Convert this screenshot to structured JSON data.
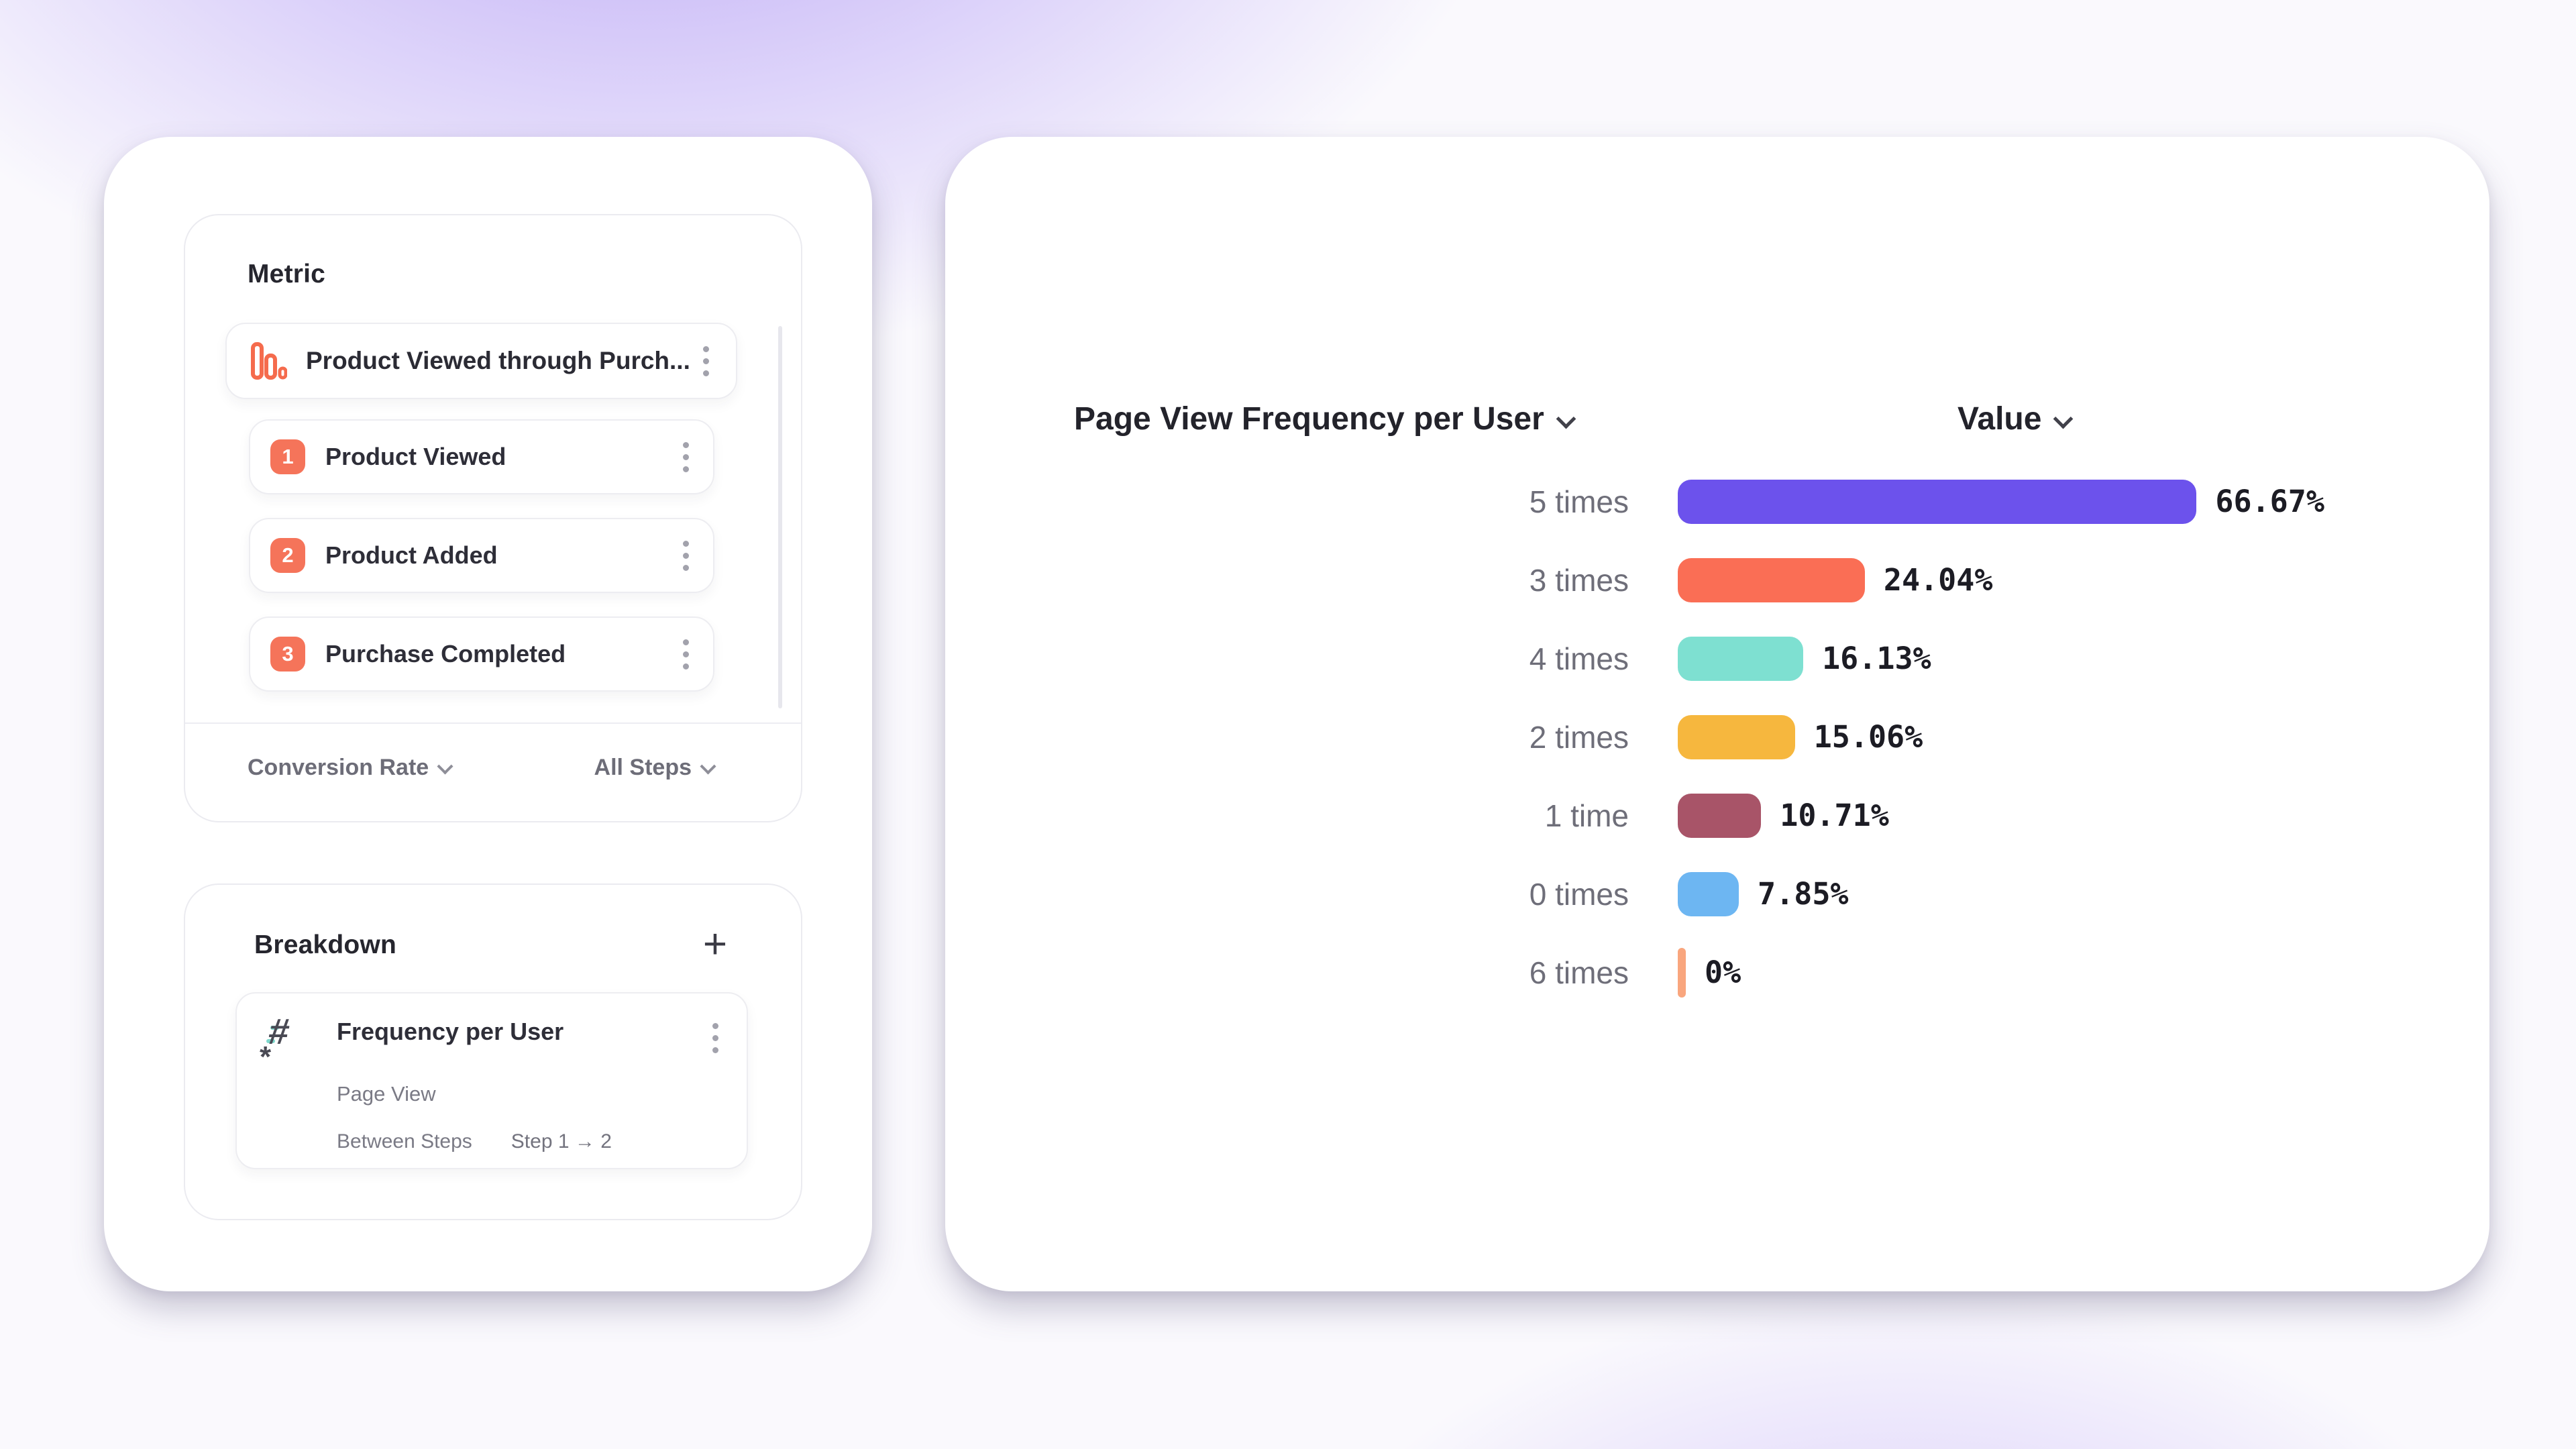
{
  "metric_panel": {
    "title": "Metric",
    "funnel": {
      "label": "Product Viewed through Purch..."
    },
    "steps": [
      {
        "num": "1",
        "label": "Product Viewed"
      },
      {
        "num": "2",
        "label": "Product Added"
      },
      {
        "num": "3",
        "label": "Purchase Completed"
      }
    ],
    "footer": {
      "conversion_dropdown": "Conversion Rate",
      "steps_dropdown": "All Steps"
    }
  },
  "breakdown_panel": {
    "title": "Breakdown",
    "add_label": "+",
    "item": {
      "title": "Frequency per User",
      "subtitle": "Page View",
      "meta_label": "Between Steps",
      "meta_value": "Step 1 → 2"
    }
  },
  "chart_data": {
    "type": "bar",
    "orientation": "horizontal",
    "title": "Page View Frequency per User",
    "value_header": "Value",
    "categories": [
      "5 times",
      "3 times",
      "4 times",
      "2 times",
      "1 time",
      "0 times",
      "6 times"
    ],
    "values": [
      66.67,
      24.04,
      16.13,
      15.06,
      10.71,
      7.85,
      0
    ],
    "value_labels": [
      "66.67%",
      "24.04%",
      "16.13%",
      "15.06%",
      "10.71%",
      "7.85%",
      "0%"
    ],
    "colors": [
      "#6C52EC",
      "#FA6E55",
      "#7EE0D1",
      "#F6B73E",
      "#A85468",
      "#6DB6F2",
      "#F9A67E"
    ],
    "unit": "%",
    "xlim": [
      0,
      100
    ],
    "grid": false,
    "legend": "none"
  },
  "accent_colors": {
    "step_badge": "#F5745A",
    "funnel_icon": "#F56B4D",
    "hash_icon_accent": "#7ED8CC"
  }
}
